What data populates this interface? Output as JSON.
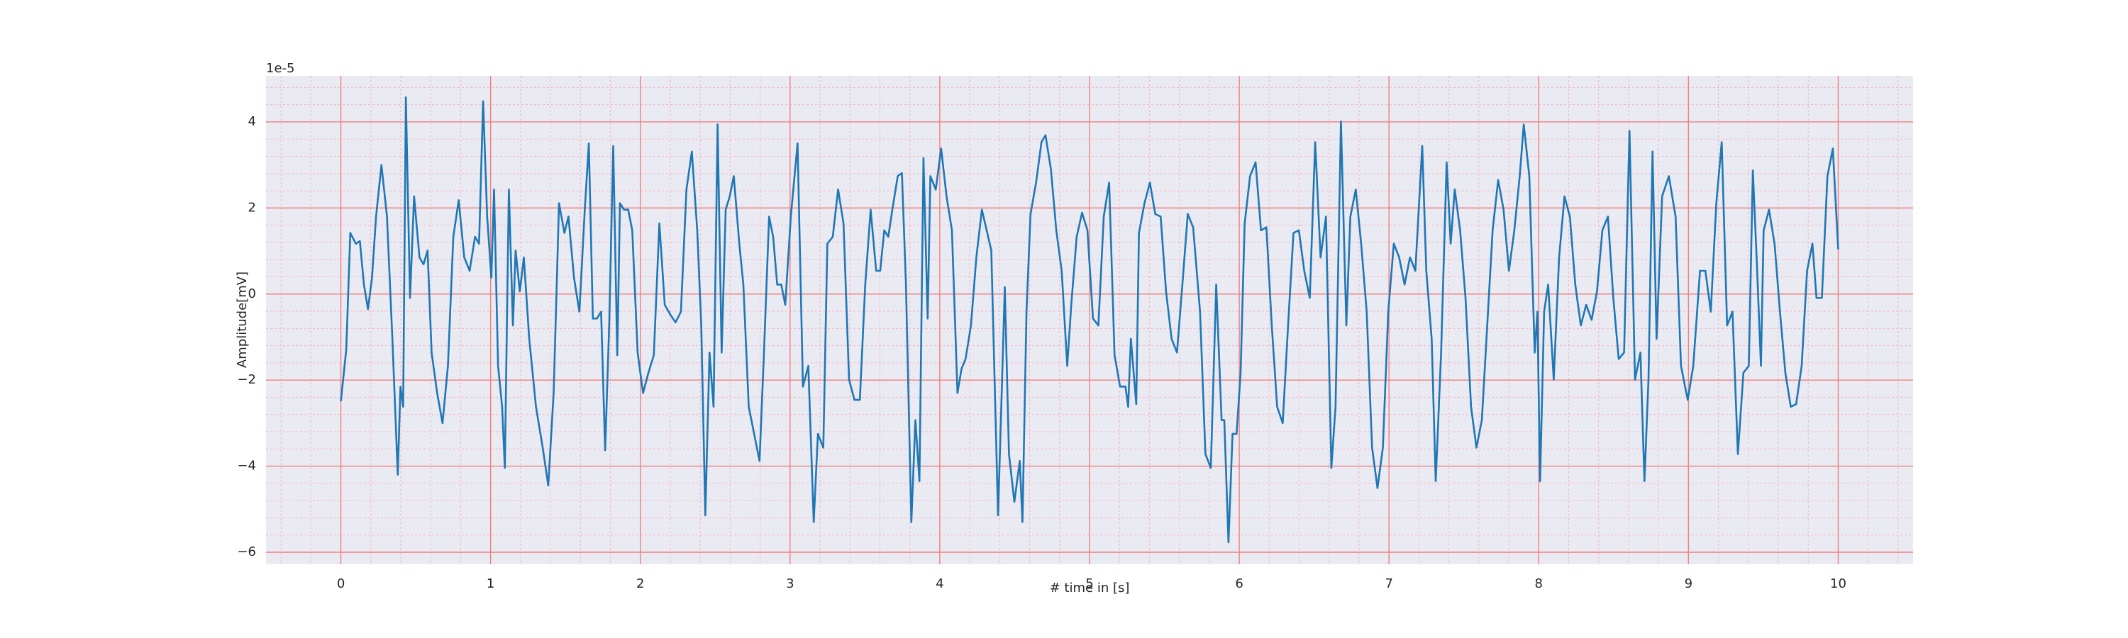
{
  "chart_data": {
    "type": "line",
    "xlabel": "# time in [s]",
    "ylabel": "Amplitude[mV]",
    "offset_label": "1e-5",
    "color": "#1f77b4",
    "grid": true,
    "minor_grid": true,
    "xlim": [
      -0.5,
      10.5
    ],
    "xticks": [
      0,
      1,
      2,
      3,
      4,
      5,
      6,
      7,
      8,
      9,
      10
    ],
    "ylim": [
      -6.28,
      5.07
    ],
    "yticks": [
      {
        "value": -6,
        "label": "−6"
      },
      {
        "value": -4,
        "label": "−4"
      },
      {
        "value": -2,
        "label": "−2"
      },
      0,
      2,
      4
    ],
    "x": [
      0,
      0.036,
      0.063,
      0.1,
      0.127,
      0.154,
      0.181,
      0.208,
      0.235,
      0.271,
      0.308,
      0.344,
      0.362,
      0.38,
      0.398,
      0.416,
      0.434,
      0.462,
      0.489,
      0.525,
      0.552,
      0.579,
      0.606,
      0.643,
      0.679,
      0.715,
      0.751,
      0.787,
      0.824,
      0.86,
      0.896,
      0.923,
      0.95,
      0.977,
      1.005,
      1.023,
      1.05,
      1.077,
      1.095,
      1.122,
      1.149,
      1.167,
      1.195,
      1.222,
      1.258,
      1.303,
      1.348,
      1.385,
      1.421,
      1.457,
      1.493,
      1.52,
      1.557,
      1.593,
      1.629,
      1.656,
      1.683,
      1.71,
      1.738,
      1.765,
      1.792,
      1.819,
      1.846,
      1.864,
      1.891,
      1.919,
      1.946,
      1.982,
      2.018,
      2.054,
      2.09,
      2.127,
      2.163,
      2.199,
      2.235,
      2.271,
      2.308,
      2.344,
      2.38,
      2.407,
      2.434,
      2.462,
      2.489,
      2.516,
      2.543,
      2.57,
      2.597,
      2.624,
      2.661,
      2.688,
      2.724,
      2.76,
      2.796,
      2.824,
      2.86,
      2.887,
      2.914,
      2.941,
      2.968,
      3.005,
      3.05,
      3.086,
      3.122,
      3.158,
      3.186,
      3.222,
      3.249,
      3.285,
      3.321,
      3.357,
      3.394,
      3.43,
      3.466,
      3.502,
      3.538,
      3.575,
      3.602,
      3.629,
      3.656,
      3.683,
      3.719,
      3.747,
      3.774,
      3.81,
      3.837,
      3.864,
      3.891,
      3.919,
      3.937,
      3.973,
      4.009,
      4.045,
      4.081,
      4.118,
      4.145,
      4.172,
      4.208,
      4.244,
      4.281,
      4.317,
      4.344,
      4.389,
      4.416,
      4.434,
      4.462,
      4.498,
      4.534,
      4.552,
      4.579,
      4.606,
      4.643,
      4.679,
      4.706,
      4.742,
      4.778,
      4.814,
      4.851,
      4.878,
      4.914,
      4.95,
      4.986,
      5.023,
      5.059,
      5.095,
      5.131,
      5.167,
      5.204,
      5.24,
      5.258,
      5.276,
      5.312,
      5.33,
      5.367,
      5.403,
      5.439,
      5.475,
      5.511,
      5.548,
      5.584,
      5.62,
      5.656,
      5.692,
      5.738,
      5.774,
      5.81,
      5.846,
      5.882,
      5.9,
      5.928,
      5.955,
      5.982,
      6.009,
      6.036,
      6.072,
      6.109,
      6.145,
      6.181,
      6.217,
      6.253,
      6.29,
      6.326,
      6.362,
      6.398,
      6.434,
      6.471,
      6.507,
      6.543,
      6.579,
      6.615,
      6.643,
      6.679,
      6.715,
      6.742,
      6.778,
      6.814,
      6.851,
      6.887,
      6.923,
      6.959,
      6.995,
      7.032,
      7.068,
      7.104,
      7.14,
      7.176,
      7.222,
      7.249,
      7.285,
      7.312,
      7.348,
      7.385,
      7.412,
      7.439,
      7.475,
      7.511,
      7.548,
      7.584,
      7.62,
      7.656,
      7.692,
      7.729,
      7.765,
      7.801,
      7.837,
      7.873,
      7.9,
      7.937,
      7.973,
      7.991,
      8.009,
      8.036,
      8.063,
      8.1,
      8.136,
      8.172,
      8.208,
      8.244,
      8.281,
      8.317,
      8.353,
      8.389,
      8.425,
      8.462,
      8.498,
      8.534,
      8.57,
      8.606,
      8.643,
      8.679,
      8.706,
      8.733,
      8.76,
      8.787,
      8.824,
      8.869,
      8.914,
      8.95,
      8.995,
      9.032,
      9.077,
      9.113,
      9.149,
      9.186,
      9.222,
      9.258,
      9.294,
      9.33,
      9.367,
      9.403,
      9.43,
      9.457,
      9.484,
      9.502,
      9.538,
      9.575,
      9.611,
      9.647,
      9.683,
      9.719,
      9.756,
      9.792,
      9.828,
      9.855,
      9.891,
      9.928,
      9.964,
      10
    ],
    "values": [
      -2.49,
      -1.29,
      1.42,
      1.17,
      1.23,
      0.22,
      -0.35,
      0.38,
      1.8,
      3,
      1.8,
      -1.04,
      -2.62,
      -4.2,
      -2.15,
      -2.62,
      4.57,
      -0.09,
      2.27,
      0.85,
      0.69,
      1.01,
      -1.36,
      -2.3,
      -3,
      -1.67,
      1.33,
      2.18,
      0.85,
      0.54,
      1.33,
      1.17,
      4.48,
      1.8,
      0.38,
      2.43,
      -1.67,
      -2.62,
      -4.04,
      2.43,
      -0.73,
      1.01,
      0.06,
      0.85,
      -1.04,
      -2.62,
      -3.57,
      -4.45,
      -2.3,
      2.11,
      1.42,
      1.8,
      0.38,
      -0.41,
      1.96,
      3.5,
      -0.57,
      -0.57,
      -0.41,
      -3.63,
      -0.73,
      3.44,
      -1.42,
      2.11,
      1.96,
      1.96,
      1.48,
      -1.36,
      -2.3,
      -1.83,
      -1.42,
      1.64,
      -0.25,
      -0.47,
      -0.66,
      -0.41,
      2.43,
      3.31,
      1.48,
      -0.73,
      -5.14,
      -1.36,
      -2.62,
      3.94,
      -1.36,
      1.96,
      2.27,
      2.74,
      1.17,
      0.22,
      -2.62,
      -3.25,
      -3.88,
      -1.51,
      1.8,
      1.33,
      0.22,
      0.22,
      -0.25,
      1.8,
      3.5,
      -2.15,
      -1.67,
      -5.3,
      -3.25,
      -3.57,
      1.17,
      1.33,
      2.43,
      1.64,
      -1.99,
      -2.46,
      -2.46,
      0.22,
      1.96,
      0.54,
      0.54,
      1.48,
      1.33,
      1.96,
      2.74,
      2.81,
      0.22,
      -5.3,
      -2.93,
      -4.35,
      3.16,
      -0.57,
      2.74,
      2.43,
      3.38,
      2.27,
      1.48,
      -2.3,
      -1.74,
      -1.51,
      -0.73,
      0.85,
      1.96,
      1.42,
      1.01,
      -5.14,
      -1.99,
      0.16,
      -3.72,
      -4.83,
      -3.88,
      -5.3,
      -0.41,
      1.86,
      2.59,
      3.53,
      3.69,
      2.9,
      1.48,
      0.54,
      -1.67,
      -0.25,
      1.33,
      1.89,
      1.48,
      -0.57,
      -0.73,
      1.8,
      2.59,
      -1.42,
      -2.15,
      -2.15,
      -2.62,
      -1.04,
      -2.56,
      1.42,
      2.11,
      2.59,
      1.86,
      1.8,
      0.06,
      -1.04,
      -1.36,
      0.22,
      1.86,
      1.55,
      -0.41,
      -3.72,
      -4.04,
      0.22,
      -2.93,
      -2.93,
      -5.77,
      -3.25,
      -3.25,
      -1.83,
      1.64,
      2.74,
      3.06,
      1.48,
      1.55,
      -0.73,
      -2.62,
      -3,
      -0.73,
      1.42,
      1.48,
      0.54,
      -0.09,
      3.53,
      0.85,
      1.8,
      -4.04,
      -2.62,
      4.01,
      -0.73,
      1.8,
      2.43,
      1.17,
      -0.41,
      -3.57,
      -4.51,
      -3.57,
      -0.41,
      1.17,
      0.85,
      0.22,
      0.85,
      0.54,
      3.44,
      0.54,
      -1.04,
      -4.35,
      -1.36,
      3.06,
      1.17,
      2.43,
      1.48,
      -0.09,
      -2.62,
      -3.57,
      -2.93,
      -0.73,
      1.48,
      2.65,
      1.96,
      0.54,
      1.48,
      2.74,
      3.94,
      2.74,
      -1.36,
      -0.41,
      -4.35,
      -0.41,
      0.22,
      -1.99,
      0.85,
      2.27,
      1.8,
      0.22,
      -0.73,
      -0.25,
      -0.6,
      0.06,
      1.48,
      1.8,
      -0.09,
      -1.51,
      -1.36,
      3.79,
      -1.99,
      -1.36,
      -4.35,
      -1.99,
      3.31,
      -1.04,
      2.27,
      2.74,
      1.8,
      -1.67,
      -2.46,
      -1.67,
      0.54,
      0.54,
      -0.41,
      2.11,
      3.53,
      -0.73,
      -0.41,
      -3.72,
      -1.83,
      -1.67,
      2.87,
      0.69,
      -1.67,
      1.48,
      1.96,
      1.17,
      -0.41,
      -1.83,
      -2.62,
      -2.56,
      -1.67,
      0.54,
      1.17,
      -0.09,
      -0.09,
      2.74,
      3.38,
      1.04
    ]
  }
}
